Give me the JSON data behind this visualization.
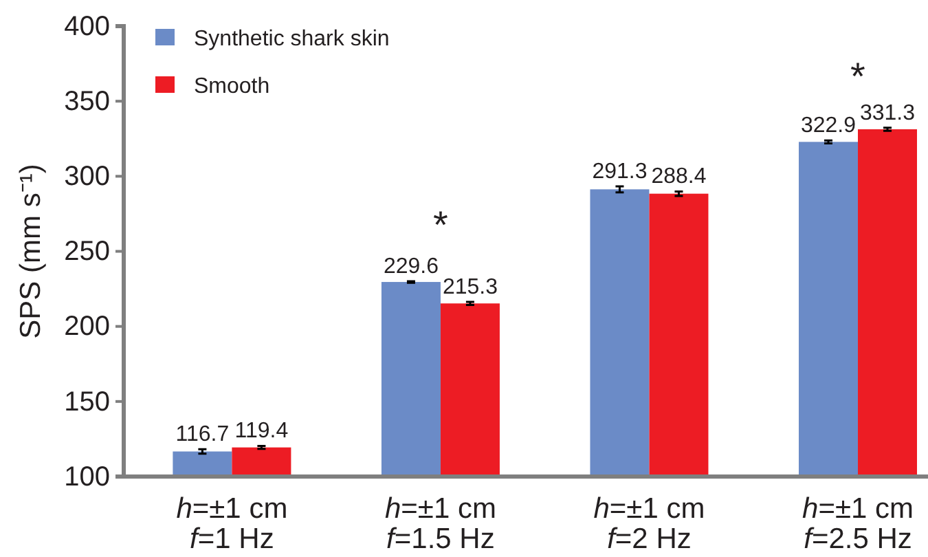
{
  "chart_data": {
    "type": "bar",
    "categories": [
      "h=±1 cm\nf=1 Hz",
      "h=±1 cm\nf=1.5 Hz",
      "h=±1 cm\nf=2 Hz",
      "h=±1 cm\nf=2.5 Hz"
    ],
    "series": [
      {
        "name": "Synthetic shark skin",
        "color": "#6b8bc7",
        "values": [
          116.7,
          229.6,
          291.3,
          322.9
        ],
        "errors": [
          1.5,
          0.5,
          2,
          1
        ]
      },
      {
        "name": "Smooth",
        "color": "#ed1c24",
        "values": [
          119.4,
          215.3,
          288.4,
          331.3
        ],
        "errors": [
          1,
          1,
          1.5,
          1
        ]
      }
    ],
    "ylabel": "SPS (mm s⁻¹)",
    "ylim": [
      100,
      400
    ],
    "yticks": [
      100,
      150,
      200,
      250,
      300,
      350,
      400
    ],
    "data_labels": true,
    "legend": "top left",
    "annotations": [
      "*",
      "*"
    ]
  }
}
